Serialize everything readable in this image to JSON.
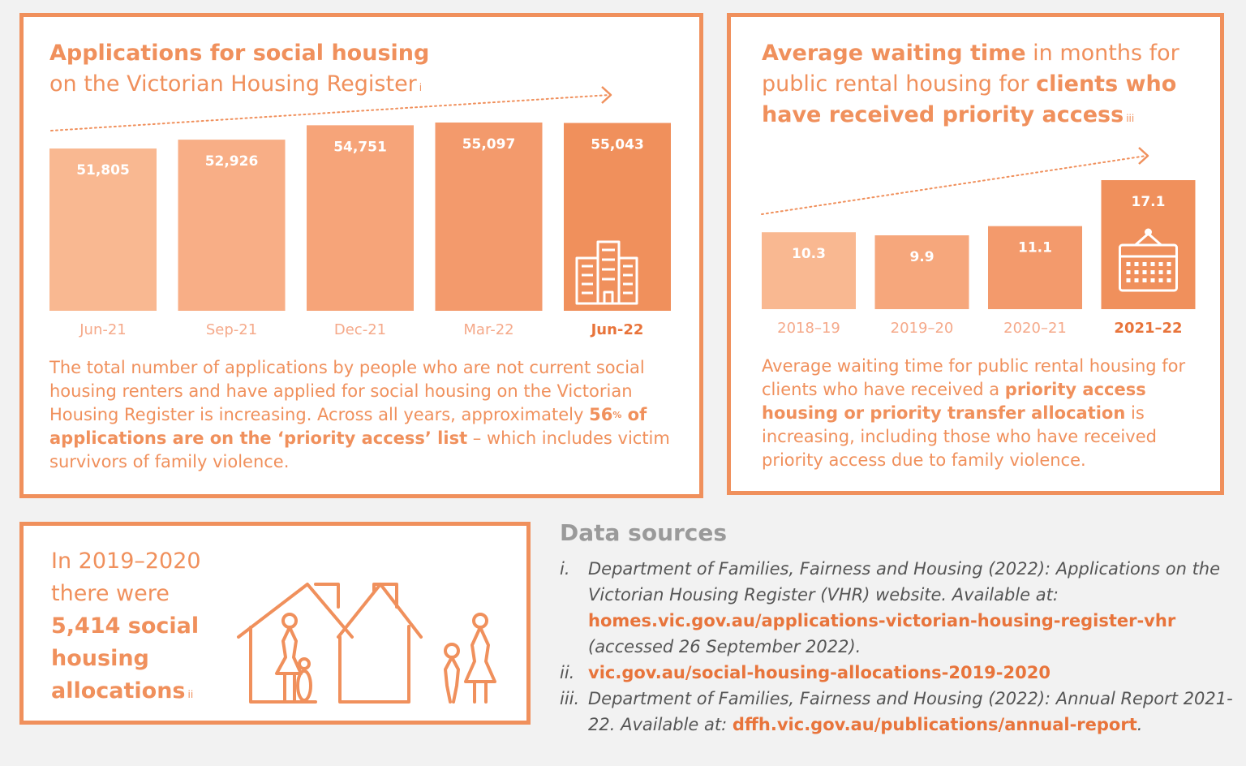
{
  "colors": {
    "accent": "#f0905c",
    "link": "#e8743b",
    "background": "#f2f2f2",
    "muted": "#9a9a9a"
  },
  "applications_panel": {
    "title_bold": "Applications for social housing",
    "title_light": "on the Victorian Housing Register",
    "title_ref": "i",
    "caption_1": "The total number of applications by people who are not current social housing renters and have applied for social housing on the Victorian Housing Register is increasing. Across all years, approximately ",
    "caption_bold_num": "56",
    "caption_bold_pct": "%",
    "caption_bold_rest": " of applications are on the ‘priority access’ list",
    "caption_2": " – which includes victim survivors of family violence.",
    "icon": "building-icon"
  },
  "waiting_panel": {
    "title_bold_1": "Average waiting time",
    "title_light_1": " in months for public rental housing for ",
    "title_bold_2": "clients who have received priority access",
    "title_ref": "iii",
    "caption_1": "Average waiting time for public rental housing for clients who have received a ",
    "caption_bold": "priority access housing or priority transfer allocation",
    "caption_2": " is increasing, including those who have received priority access due to family violence.",
    "icon": "calendar-icon"
  },
  "allocations_panel": {
    "line_1": "In 2019–2020",
    "line_2": "there were",
    "bold": "5,414 social housing allocations",
    "ref": "ii",
    "icon": "family-houses-icon"
  },
  "sources": {
    "title": "Data sources",
    "items": [
      {
        "num": "i.",
        "text": "Department of Families, Fairness and Housing (2022): Applications on the Victorian Housing Register (VHR) website. Available at: ",
        "link": "homes.vic.gov.au/applications-victorian-housing-register-vhr",
        "after": " (accessed 26 September 2022)."
      },
      {
        "num": "ii.",
        "text": "",
        "link": "vic.gov.au/social-housing-allocations-2019-2020",
        "after": ""
      },
      {
        "num": "iii.",
        "text": "Department of Families, Fairness and Housing (2022): Annual Report 2021-22. Available at: ",
        "link": "dffh.vic.gov.au/publications/annual-report",
        "after": "."
      }
    ]
  },
  "chart_data": [
    {
      "type": "bar",
      "title": "Applications for social housing on the Victorian Housing Register",
      "categories": [
        "Jun-21",
        "Sep-21",
        "Dec-21",
        "Mar-22",
        "Jun-22"
      ],
      "values": [
        51805,
        52926,
        54751,
        55097,
        55043
      ],
      "value_labels": [
        "51,805",
        "52,926",
        "54,751",
        "55,097",
        "55,043"
      ],
      "bar_colors": [
        "#f9b891",
        "#f8ae86",
        "#f6a479",
        "#f39a6c",
        "#f0905c"
      ],
      "trend_arrow": true
    },
    {
      "type": "bar",
      "title": "Average waiting time in months for public rental housing for clients who have received priority access",
      "categories": [
        "2018–19",
        "2019–20",
        "2020–21",
        "2021–22"
      ],
      "values": [
        10.3,
        9.9,
        11.1,
        17.1
      ],
      "value_labels": [
        "10.3",
        "9.9",
        "11.1",
        "17.1"
      ],
      "bar_colors": [
        "#f9b891",
        "#f6a77c",
        "#f39a6c",
        "#f0905c"
      ],
      "trend_arrow": true
    }
  ]
}
